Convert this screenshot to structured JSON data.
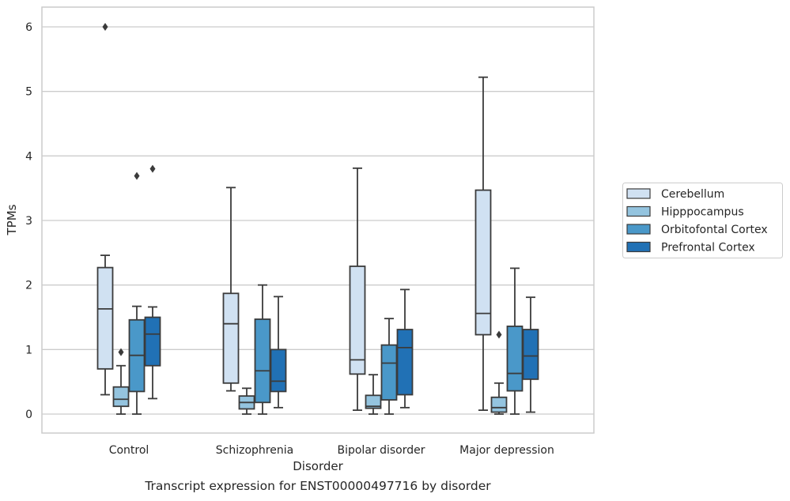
{
  "chart_data": {
    "type": "boxplot",
    "xlabel": "Disorder",
    "ylabel": "TPMs",
    "caption": "Transcript expression for ENST00000497716 by disorder",
    "ylim": [
      -0.3,
      6.3
    ],
    "yticks": [
      0,
      1,
      2,
      3,
      4,
      5,
      6
    ],
    "grid": "horizontal",
    "legend_position": "right",
    "categories": [
      "Control",
      "Schizophrenia",
      "Bipolar disorder",
      "Major depression"
    ],
    "series": [
      {
        "name": "Cerebellum",
        "color": "#d0e1f2",
        "boxes": [
          {
            "whislo": 0.3,
            "q1": 0.7,
            "med": 1.63,
            "q3": 2.27,
            "whishi": 2.46,
            "fliers": [
              6.0
            ]
          },
          {
            "whislo": 0.36,
            "q1": 0.48,
            "med": 1.4,
            "q3": 1.87,
            "whishi": 3.51,
            "fliers": []
          },
          {
            "whislo": 0.06,
            "q1": 0.62,
            "med": 0.84,
            "q3": 2.29,
            "whishi": 3.81,
            "fliers": []
          },
          {
            "whislo": 0.06,
            "q1": 1.23,
            "med": 1.56,
            "q3": 3.47,
            "whishi": 5.22,
            "fliers": []
          }
        ]
      },
      {
        "name": "Hipppocampus",
        "color": "#94c4df",
        "boxes": [
          {
            "whislo": 0.0,
            "q1": 0.12,
            "med": 0.23,
            "q3": 0.42,
            "whishi": 0.75,
            "fliers": [
              0.96
            ]
          },
          {
            "whislo": 0.0,
            "q1": 0.08,
            "med": 0.18,
            "q3": 0.28,
            "whishi": 0.4,
            "fliers": []
          },
          {
            "whislo": 0.0,
            "q1": 0.09,
            "med": 0.12,
            "q3": 0.29,
            "whishi": 0.61,
            "fliers": []
          },
          {
            "whislo": 0.0,
            "q1": 0.03,
            "med": 0.1,
            "q3": 0.26,
            "whishi": 0.48,
            "fliers": [
              1.23
            ]
          }
        ]
      },
      {
        "name": "Orbitofontal Cortex",
        "color": "#4a98c9",
        "boxes": [
          {
            "whislo": 0.0,
            "q1": 0.35,
            "med": 0.91,
            "q3": 1.46,
            "whishi": 1.67,
            "fliers": [
              3.69
            ]
          },
          {
            "whislo": 0.0,
            "q1": 0.18,
            "med": 0.67,
            "q3": 1.47,
            "whishi": 2.0,
            "fliers": []
          },
          {
            "whislo": 0.0,
            "q1": 0.22,
            "med": 0.79,
            "q3": 1.07,
            "whishi": 1.48,
            "fliers": []
          },
          {
            "whislo": 0.0,
            "q1": 0.36,
            "med": 0.63,
            "q3": 1.36,
            "whishi": 2.26,
            "fliers": []
          }
        ]
      },
      {
        "name": "Prefrontal Cortex",
        "color": "#2171b5",
        "boxes": [
          {
            "whislo": 0.24,
            "q1": 0.75,
            "med": 1.24,
            "q3": 1.5,
            "whishi": 1.66,
            "fliers": [
              3.8
            ]
          },
          {
            "whislo": 0.1,
            "q1": 0.35,
            "med": 0.51,
            "q3": 1.0,
            "whishi": 1.82,
            "fliers": []
          },
          {
            "whislo": 0.1,
            "q1": 0.3,
            "med": 1.03,
            "q3": 1.31,
            "whishi": 1.93,
            "fliers": []
          },
          {
            "whislo": 0.03,
            "q1": 0.54,
            "med": 0.9,
            "q3": 1.31,
            "whishi": 1.81,
            "fliers": []
          }
        ]
      }
    ],
    "colors": {
      "box_edge": "#3b3b3b",
      "grid": "#cccccc",
      "frame": "#cccccc"
    }
  }
}
